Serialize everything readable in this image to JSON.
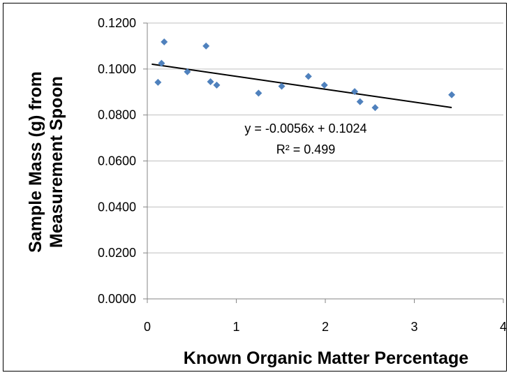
{
  "chart_data": {
    "type": "scatter",
    "title": "",
    "xlabel": "Known Organic Matter Percentage",
    "ylabel_lines": [
      "Sample Mass (g) from",
      "Measurement Spoon"
    ],
    "xlim": [
      0,
      4
    ],
    "ylim": [
      0,
      0.12
    ],
    "x_ticks": [
      "0",
      "1",
      "2",
      "3",
      "4"
    ],
    "y_ticks": [
      "0.0000",
      "0.0200",
      "0.0400",
      "0.0600",
      "0.0800",
      "0.1000",
      "0.1200"
    ],
    "grid": "horizontal",
    "marker_color": "#4f81bd",
    "trendline_color": "#000000",
    "points": [
      {
        "x": 0.12,
        "y": 0.0942
      },
      {
        "x": 0.16,
        "y": 0.1025
      },
      {
        "x": 0.19,
        "y": 0.1118
      },
      {
        "x": 0.45,
        "y": 0.0988
      },
      {
        "x": 0.66,
        "y": 0.11
      },
      {
        "x": 0.71,
        "y": 0.0945
      },
      {
        "x": 0.78,
        "y": 0.093
      },
      {
        "x": 1.25,
        "y": 0.0895
      },
      {
        "x": 1.51,
        "y": 0.0925
      },
      {
        "x": 1.81,
        "y": 0.0968
      },
      {
        "x": 1.99,
        "y": 0.093
      },
      {
        "x": 2.33,
        "y": 0.0902
      },
      {
        "x": 2.39,
        "y": 0.0858
      },
      {
        "x": 2.56,
        "y": 0.0832
      },
      {
        "x": 3.42,
        "y": 0.0888
      }
    ],
    "trendline": {
      "slope": -0.0056,
      "intercept": 0.1024,
      "x_start": 0.05,
      "x_end": 3.42
    },
    "annotations": [
      "y = -0.0056x + 0.1024",
      "R² = 0.499"
    ]
  }
}
